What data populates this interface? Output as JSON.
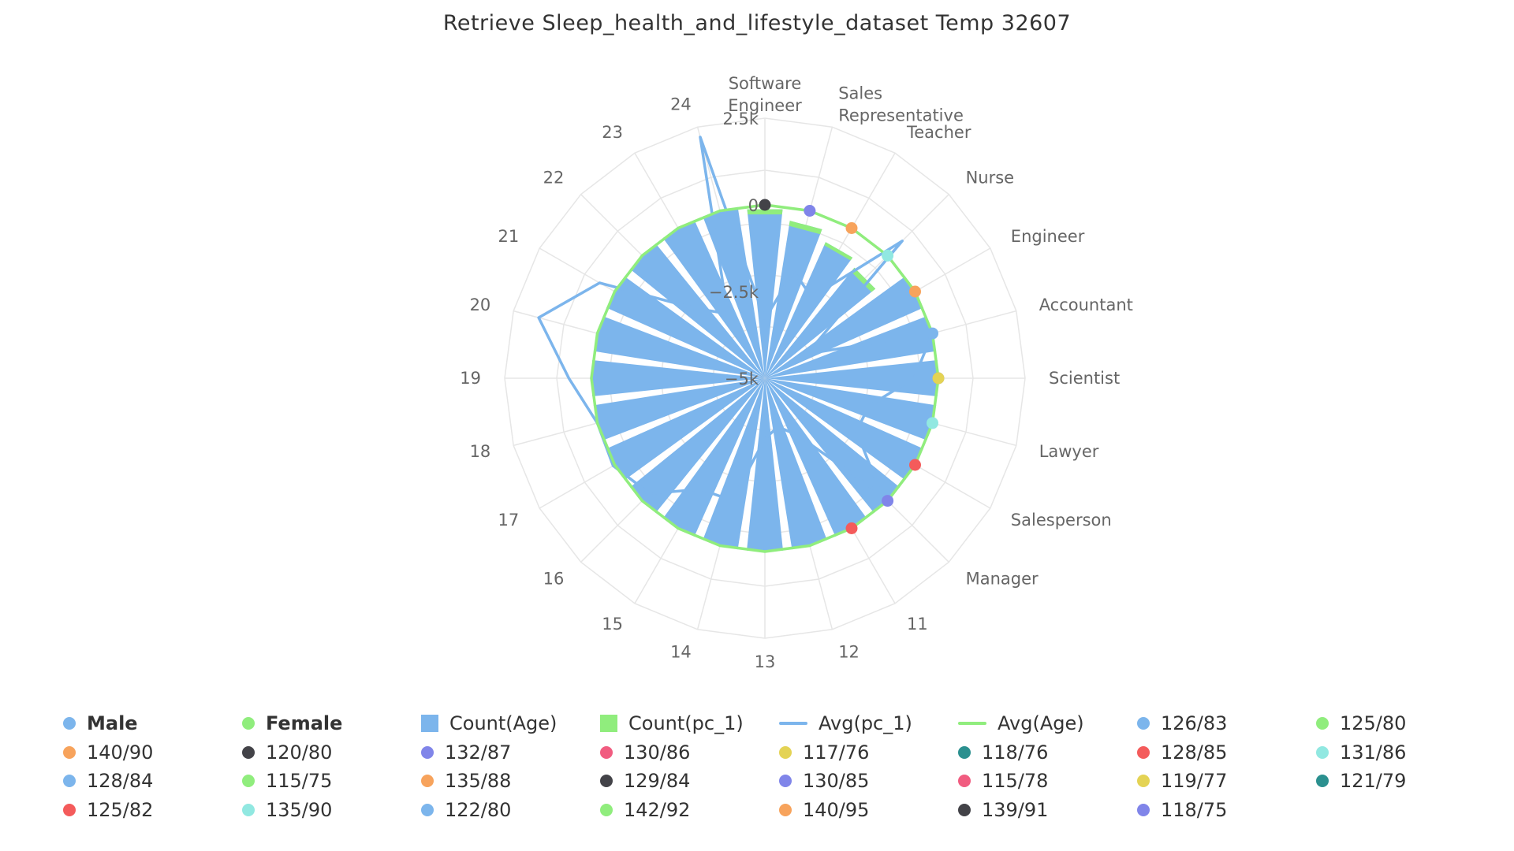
{
  "title": "Retrieve Sleep_health_and_lifestyle_dataset Temp 32607",
  "chart_data": {
    "type": "radar",
    "categories": [
      "Software\nEngineer",
      "Sales\nRepresentative",
      "Teacher",
      "Nurse",
      "Engineer",
      "Accountant",
      "Scientist",
      "Lawyer",
      "Salesperson",
      "Manager",
      "11",
      "12",
      "13",
      "14",
      "15",
      "16",
      "17",
      "18",
      "19",
      "20",
      "21",
      "22",
      "23",
      "24"
    ],
    "radial_axis": {
      "min": -5000,
      "max": 2500,
      "ticks": [
        -5000,
        -2500,
        0,
        2500
      ],
      "tick_labels": [
        "−5k",
        "−2.5k",
        "0",
        "2.5k"
      ]
    },
    "series": [
      {
        "name": "Count(Age)",
        "type": "column",
        "color": "#7cb5ec",
        "values": [
          -100,
          -400,
          -700,
          -900,
          0,
          0,
          0,
          0,
          0,
          0,
          0,
          0,
          0,
          0,
          0,
          0,
          0,
          0,
          0,
          0,
          0,
          0,
          0,
          0
        ]
      },
      {
        "name": "Count(pc_1)",
        "type": "column",
        "color": "#90ed7d",
        "values": [
          -250,
          -550,
          -800,
          -1050,
          0,
          0,
          0,
          0,
          0,
          0,
          0,
          0,
          0,
          0,
          0,
          0,
          0,
          0,
          0,
          0,
          0,
          0,
          0,
          0
        ]
      },
      {
        "name": "Avg(pc_1)",
        "type": "line",
        "color": "#7cb5ec",
        "values": [
          -3300,
          -1800,
          -2300,
          600,
          -3600,
          0,
          -700,
          -1900,
          -1950,
          -250,
          -3100,
          -3550,
          -3250,
          -1350,
          -1300,
          -300,
          50,
          0,
          650,
          1750,
          500,
          -2150,
          -2850,
          2200
        ]
      },
      {
        "name": "Avg(Age)",
        "type": "line",
        "color": "#90ed7d",
        "values": [
          0,
          0,
          0,
          0,
          0,
          0,
          0,
          0,
          0,
          0,
          0,
          0,
          0,
          0,
          0,
          0,
          0,
          0,
          0,
          0,
          0,
          0,
          0,
          0
        ]
      }
    ],
    "points": [
      {
        "name": "120/80",
        "category": 0,
        "value": 0,
        "color": "#434348"
      },
      {
        "name": "132/87",
        "category": 1,
        "value": 0,
        "color": "#8085e9"
      },
      {
        "name": "140/90",
        "category": 2,
        "value": 0,
        "color": "#f7a35c"
      },
      {
        "name": "131/86",
        "category": 3,
        "value": 0,
        "color": "#91e8e1"
      },
      {
        "name": "135/88",
        "category": 4,
        "value": 0,
        "color": "#f7a35c"
      },
      {
        "name": "126/83",
        "category": 5,
        "value": 0,
        "color": "#7cb5ec"
      },
      {
        "name": "130/85",
        "category": 6,
        "value": 0,
        "color": "#8085e9"
      },
      {
        "name": "117/76",
        "category": 6,
        "value": 0,
        "color": "#e4d354"
      },
      {
        "name": "135/90",
        "category": 7,
        "value": 0,
        "color": "#91e8e1"
      },
      {
        "name": "128/85",
        "category": 8,
        "value": 0,
        "color": "#f45b5b"
      },
      {
        "name": "118/75",
        "category": 9,
        "value": 0,
        "color": "#8085e9"
      },
      {
        "name": "125/82",
        "category": 10,
        "value": 0,
        "color": "#f45b5b"
      }
    ],
    "legend_position": "bottom",
    "grid": true
  },
  "legend": [
    {
      "label": "Male",
      "symbol": "circle",
      "color": "#7cb5ec",
      "bold": true
    },
    {
      "label": "Female",
      "symbol": "circle",
      "color": "#90ed7d",
      "bold": true
    },
    {
      "label": "Count(Age)",
      "symbol": "square",
      "color": "#7cb5ec"
    },
    {
      "label": "Count(pc_1)",
      "symbol": "square",
      "color": "#90ed7d"
    },
    {
      "label": "Avg(pc_1)",
      "symbol": "line",
      "color": "#7cb5ec"
    },
    {
      "label": "Avg(Age)",
      "symbol": "line",
      "color": "#90ed7d"
    },
    {
      "label": "126/83",
      "symbol": "circle",
      "color": "#7cb5ec"
    },
    {
      "label": "125/80",
      "symbol": "circle",
      "color": "#90ed7d"
    },
    {
      "label": "140/90",
      "symbol": "circle",
      "color": "#f7a35c"
    },
    {
      "label": "120/80",
      "symbol": "circle",
      "color": "#434348"
    },
    {
      "label": "132/87",
      "symbol": "circle",
      "color": "#8085e9"
    },
    {
      "label": "130/86",
      "symbol": "circle",
      "color": "#f15c80"
    },
    {
      "label": "117/76",
      "symbol": "circle",
      "color": "#e4d354"
    },
    {
      "label": "118/76",
      "symbol": "circle",
      "color": "#2b908f"
    },
    {
      "label": "128/85",
      "symbol": "circle",
      "color": "#f45b5b"
    },
    {
      "label": "131/86",
      "symbol": "circle",
      "color": "#91e8e1"
    },
    {
      "label": "128/84",
      "symbol": "circle",
      "color": "#7cb5ec"
    },
    {
      "label": "115/75",
      "symbol": "circle",
      "color": "#90ed7d"
    },
    {
      "label": "135/88",
      "symbol": "circle",
      "color": "#f7a35c"
    },
    {
      "label": "129/84",
      "symbol": "circle",
      "color": "#434348"
    },
    {
      "label": "130/85",
      "symbol": "circle",
      "color": "#8085e9"
    },
    {
      "label": "115/78",
      "symbol": "circle",
      "color": "#f15c80"
    },
    {
      "label": "119/77",
      "symbol": "circle",
      "color": "#e4d354"
    },
    {
      "label": "121/79",
      "symbol": "circle",
      "color": "#2b908f"
    },
    {
      "label": "125/82",
      "symbol": "circle",
      "color": "#f45b5b"
    },
    {
      "label": "135/90",
      "symbol": "circle",
      "color": "#91e8e1"
    },
    {
      "label": "122/80",
      "symbol": "circle",
      "color": "#7cb5ec"
    },
    {
      "label": "142/92",
      "symbol": "circle",
      "color": "#90ed7d"
    },
    {
      "label": "140/95",
      "symbol": "circle",
      "color": "#f7a35c"
    },
    {
      "label": "139/91",
      "symbol": "circle",
      "color": "#434348"
    },
    {
      "label": "118/75",
      "symbol": "circle",
      "color": "#8085e9"
    }
  ]
}
